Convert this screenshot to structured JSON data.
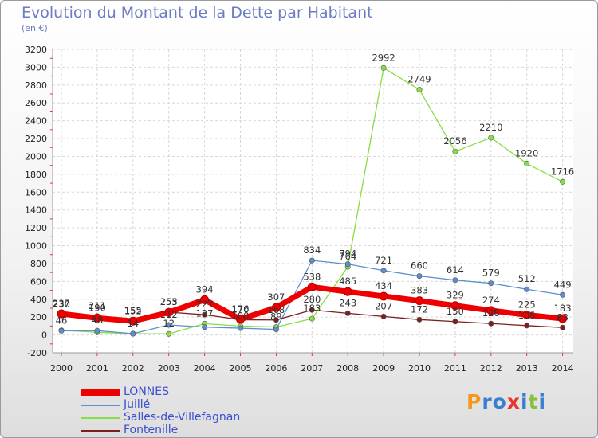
{
  "title": "Evolution du Montant de la Dette par Habitant",
  "unit_label": "(en €)",
  "logo_text": "Proxiti",
  "chart_data": {
    "type": "line",
    "title": "Evolution du Montant de la Dette par Habitant",
    "ylabel": "(en €)",
    "xlabel": "",
    "x": [
      "2000",
      "2001",
      "2002",
      "2003",
      "2004",
      "2005",
      "2006",
      "2007",
      "2008",
      "2009",
      "2010",
      "2011",
      "2012",
      "2013",
      "2014"
    ],
    "ylim": [
      -200,
      3200
    ],
    "yticks": [
      -200,
      0,
      200,
      400,
      600,
      800,
      1000,
      1200,
      1400,
      1600,
      1800,
      2000,
      2200,
      2400,
      2600,
      2800,
      3000,
      3200
    ],
    "grid": true,
    "legend_position": "bottom-left",
    "series": [
      {
        "name": "LONNES",
        "color": "#ee0000",
        "values": [
          237,
          190,
          155,
          253,
          394,
          176,
          307,
          538,
          485,
          434,
          383,
          329,
          274,
          225,
          183
        ],
        "labels": [
          "237",
          "190",
          "155",
          "253",
          "394",
          "176",
          "307",
          "538",
          "485",
          "434",
          "383",
          "329",
          "274",
          "225",
          "183"
        ]
      },
      {
        "name": "Juillé",
        "color": "#5b8fd0",
        "values": [
          46,
          48,
          14,
          112,
          88,
          76,
          62,
          834,
          794,
          721,
          660,
          614,
          579,
          512,
          449
        ],
        "labels": [
          "46",
          "48",
          "14",
          "112",
          "",
          "",
          "",
          "834",
          "794",
          "721",
          "660",
          "614",
          "579",
          "512",
          "449"
        ]
      },
      {
        "name": "Salles-de-Villefagnan",
        "color": "#88dd44",
        "values": [
          52,
          30,
          14,
          12,
          127,
          100,
          89,
          183,
          764,
          2992,
          2749,
          2056,
          2210,
          1920,
          1716
        ],
        "labels": [
          "",
          "",
          "",
          "12",
          "127",
          "100",
          "89",
          "183",
          "764",
          "2992",
          "2749",
          "2056",
          "2210",
          "1920",
          "1716"
        ]
      },
      {
        "name": "Fontenille",
        "color": "#7a2020",
        "values": [
          230,
          211,
          152,
          255,
          227,
          170,
          168,
          280,
          243,
          207,
          172,
          150,
          128,
          105,
          83
        ],
        "labels": [
          "230",
          "211",
          "152",
          "255",
          "227",
          "170",
          "168",
          "280",
          "243",
          "207",
          "172",
          "150",
          "128",
          "105",
          "83"
        ]
      }
    ]
  }
}
